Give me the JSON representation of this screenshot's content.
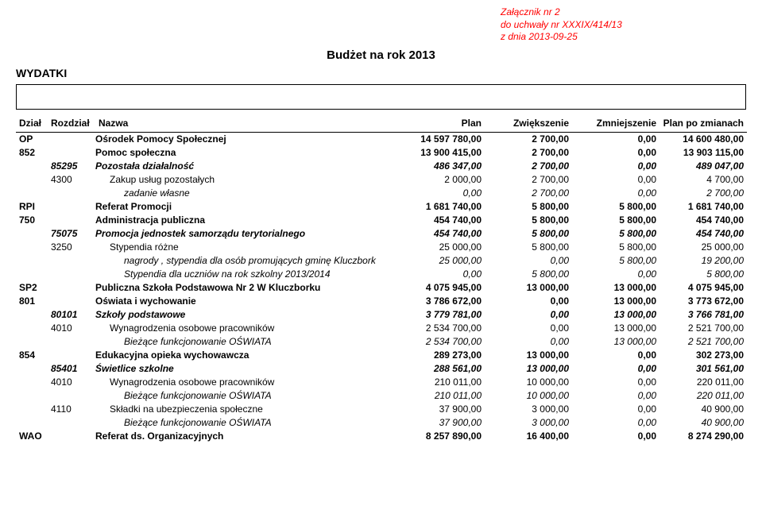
{
  "attachment": {
    "line1": "Załącznik nr 2",
    "line2": "do uchwały nr XXXIX/414/13",
    "line3": "z dnia 2013-09-25"
  },
  "title": "Budżet na rok 2013",
  "section": "WYDATKI",
  "headers": {
    "dzial": "Dział",
    "rozdzial": "Rozdział",
    "nazwa": "Nazwa",
    "plan": "Plan",
    "zwiek": "Zwiększenie",
    "zmniej": "Zmniejszenie",
    "planpo": "Plan po zmianach"
  },
  "rows": [
    {
      "lvl": "op",
      "c1": "OP",
      "c2": "",
      "nazwa": "Ośrodek Pomocy Społecznej",
      "v": [
        "14 597 780,00",
        "2 700,00",
        "0,00",
        "14 600 480,00"
      ],
      "ind": 0
    },
    {
      "lvl": "dzial",
      "c1": "852",
      "c2": "",
      "nazwa": "Pomoc społeczna",
      "v": [
        "13 900 415,00",
        "2 700,00",
        "0,00",
        "13 903 115,00"
      ],
      "ind": 0
    },
    {
      "lvl": "rozdz",
      "c1": "",
      "c2": "85295",
      "nazwa": "Pozostała działalność",
      "v": [
        "486 347,00",
        "2 700,00",
        "0,00",
        "489 047,00"
      ],
      "ind": 0
    },
    {
      "lvl": "par",
      "c1": "",
      "c2": "4300",
      "nazwa": "Zakup usług pozostałych",
      "v": [
        "2 000,00",
        "2 700,00",
        "0,00",
        "4 700,00"
      ],
      "ind": 1
    },
    {
      "lvl": "sub",
      "c1": "",
      "c2": "",
      "nazwa": "zadanie własne",
      "v": [
        "0,00",
        "2 700,00",
        "0,00",
        "2 700,00"
      ],
      "ind": 2
    },
    {
      "lvl": "op",
      "c1": "RPI",
      "c2": "",
      "nazwa": "Referat Promocji",
      "v": [
        "1 681 740,00",
        "5 800,00",
        "5 800,00",
        "1 681 740,00"
      ],
      "ind": 0
    },
    {
      "lvl": "dzial",
      "c1": "750",
      "c2": "",
      "nazwa": "Administracja publiczna",
      "v": [
        "454 740,00",
        "5 800,00",
        "5 800,00",
        "454 740,00"
      ],
      "ind": 0
    },
    {
      "lvl": "rozdz",
      "c1": "",
      "c2": "75075",
      "nazwa": "Promocja jednostek samorządu terytorialnego",
      "v": [
        "454 740,00",
        "5 800,00",
        "5 800,00",
        "454 740,00"
      ],
      "ind": 0
    },
    {
      "lvl": "par",
      "c1": "",
      "c2": "3250",
      "nazwa": "Stypendia różne",
      "v": [
        "25 000,00",
        "5 800,00",
        "5 800,00",
        "25 000,00"
      ],
      "ind": 1
    },
    {
      "lvl": "sub",
      "c1": "",
      "c2": "",
      "nazwa": "nagrody , stypendia dla osób promujących gminę Kluczbork",
      "v": [
        "25 000,00",
        "0,00",
        "5 800,00",
        "19 200,00"
      ],
      "ind": 2
    },
    {
      "lvl": "sub",
      "c1": "",
      "c2": "",
      "nazwa": "Stypendia dla uczniów na rok szkolny 2013/2014",
      "v": [
        "0,00",
        "5 800,00",
        "0,00",
        "5 800,00"
      ],
      "ind": 2
    },
    {
      "lvl": "op",
      "c1": "SP2",
      "c2": "",
      "nazwa": "Publiczna Szkoła Podstawowa Nr 2 W Kluczborku",
      "v": [
        "4 075 945,00",
        "13 000,00",
        "13 000,00",
        "4 075 945,00"
      ],
      "ind": 0
    },
    {
      "lvl": "dzial",
      "c1": "801",
      "c2": "",
      "nazwa": "Oświata i wychowanie",
      "v": [
        "3 786 672,00",
        "0,00",
        "13 000,00",
        "3 773 672,00"
      ],
      "ind": 0
    },
    {
      "lvl": "rozdz",
      "c1": "",
      "c2": "80101",
      "nazwa": "Szkoły podstawowe",
      "v": [
        "3 779 781,00",
        "0,00",
        "13 000,00",
        "3 766 781,00"
      ],
      "ind": 0
    },
    {
      "lvl": "par",
      "c1": "",
      "c2": "4010",
      "nazwa": "Wynagrodzenia osobowe pracowników",
      "v": [
        "2 534 700,00",
        "0,00",
        "13 000,00",
        "2 521 700,00"
      ],
      "ind": 1
    },
    {
      "lvl": "sub",
      "c1": "",
      "c2": "",
      "nazwa": "Bieżące funkcjonowanie OŚWIATA",
      "v": [
        "2 534 700,00",
        "0,00",
        "13 000,00",
        "2 521 700,00"
      ],
      "ind": 2
    },
    {
      "lvl": "dzial",
      "c1": "854",
      "c2": "",
      "nazwa": "Edukacyjna opieka wychowawcza",
      "v": [
        "289 273,00",
        "13 000,00",
        "0,00",
        "302 273,00"
      ],
      "ind": 0
    },
    {
      "lvl": "rozdz",
      "c1": "",
      "c2": "85401",
      "nazwa": "Świetlice szkolne",
      "v": [
        "288 561,00",
        "13 000,00",
        "0,00",
        "301 561,00"
      ],
      "ind": 0
    },
    {
      "lvl": "par",
      "c1": "",
      "c2": "4010",
      "nazwa": "Wynagrodzenia osobowe pracowników",
      "v": [
        "210 011,00",
        "10 000,00",
        "0,00",
        "220 011,00"
      ],
      "ind": 1
    },
    {
      "lvl": "sub",
      "c1": "",
      "c2": "",
      "nazwa": "Bieżące funkcjonowanie OŚWIATA",
      "v": [
        "210 011,00",
        "10 000,00",
        "0,00",
        "220 011,00"
      ],
      "ind": 2
    },
    {
      "lvl": "par",
      "c1": "",
      "c2": "4110",
      "nazwa": "Składki na ubezpieczenia społeczne",
      "v": [
        "37 900,00",
        "3 000,00",
        "0,00",
        "40 900,00"
      ],
      "ind": 1
    },
    {
      "lvl": "sub",
      "c1": "",
      "c2": "",
      "nazwa": "Bieżące funkcjonowanie OŚWIATA",
      "v": [
        "37 900,00",
        "3 000,00",
        "0,00",
        "40 900,00"
      ],
      "ind": 2
    },
    {
      "lvl": "op",
      "c1": "WAO",
      "c2": "",
      "nazwa": "Referat ds. Organizacyjnych",
      "v": [
        "8 257 890,00",
        "16 400,00",
        "0,00",
        "8 274 290,00"
      ],
      "ind": 0
    }
  ]
}
